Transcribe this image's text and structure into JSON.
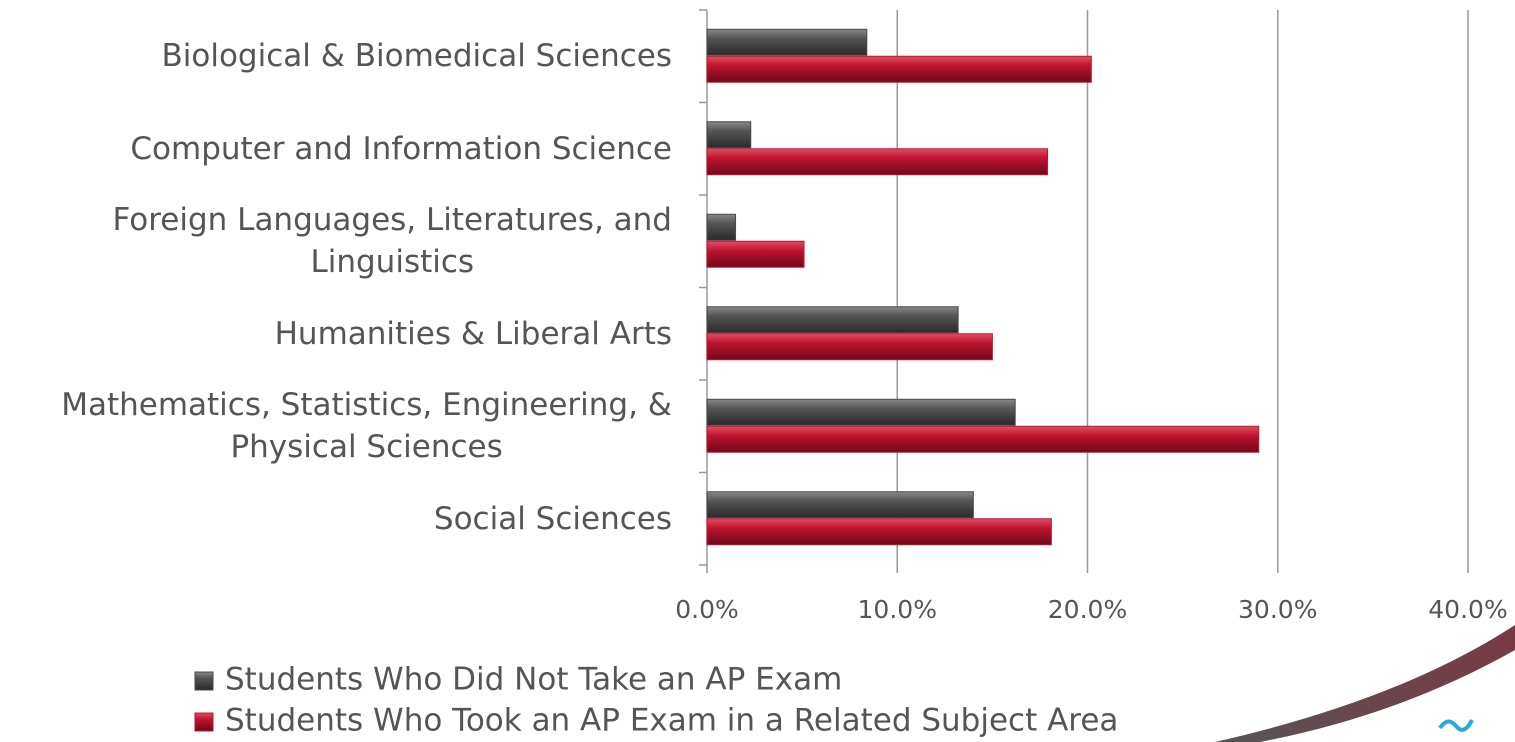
{
  "chart_data": {
    "type": "barh",
    "categories": [
      "Biological & Biomedical Sciences",
      "Computer and Information Science",
      "Foreign Languages, Literatures, and\nLinguistics",
      "Humanities & Liberal Arts",
      "Mathematics, Statistics, Engineering, &\nPhysical Sciences",
      "Social Sciences"
    ],
    "series": [
      {
        "name": "Students Who Did Not Take an AP Exam",
        "color": "#4a4a4a",
        "values": [
          8.4,
          2.3,
          1.5,
          13.2,
          16.2,
          14.0
        ]
      },
      {
        "name": "Students Who Took an AP Exam in a Related Subject Area",
        "color": "#c0142f",
        "values": [
          20.2,
          17.9,
          5.1,
          15.0,
          29.0,
          18.1
        ]
      }
    ],
    "xlim": [
      0,
      40
    ],
    "xticks": [
      {
        "value": 0,
        "label": "0.0%"
      },
      {
        "value": 10,
        "label": "10.0%"
      },
      {
        "value": 20,
        "label": "20.0%"
      },
      {
        "value": 30,
        "label": "30.0%"
      },
      {
        "value": 40,
        "label": "40.0%"
      }
    ],
    "grid": true,
    "legend": "bottom"
  }
}
